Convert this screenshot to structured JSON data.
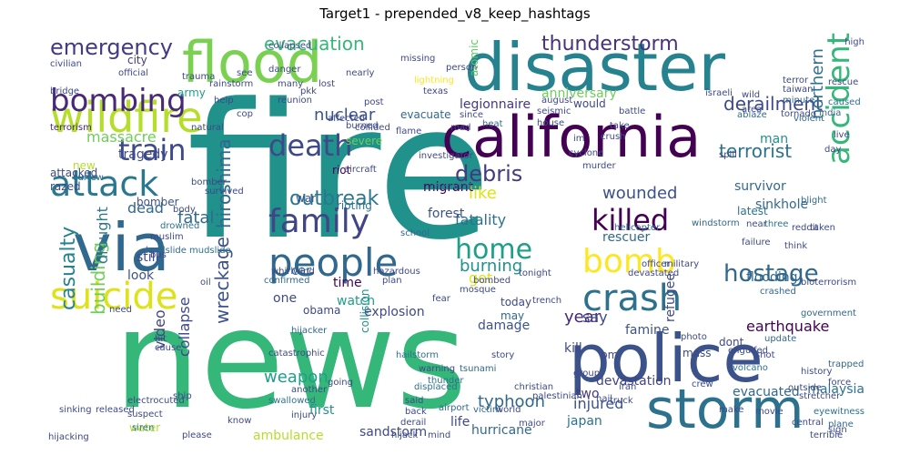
{
  "title": "Target1 - prepended_v8_keep_hashtags",
  "palette": [
    "#440154",
    "#482878",
    "#3e4989",
    "#31688e",
    "#26828e",
    "#1f9e89",
    "#35b779",
    "#6ece58",
    "#b5de2b",
    "#fde725"
  ],
  "words": [
    {
      "text": "fire",
      "color": "#21918c"
    },
    {
      "text": "news",
      "color": "#35b779"
    },
    {
      "text": "disaster",
      "color": "#26828e"
    },
    {
      "text": "flood",
      "color": "#7ad151"
    },
    {
      "text": "california",
      "color": "#440154"
    },
    {
      "text": "police",
      "color": "#3b528b"
    },
    {
      "text": "storm",
      "color": "#2c728e"
    },
    {
      "text": "via",
      "color": "#31688e"
    },
    {
      "text": "wildfire",
      "color": "#b5de2b"
    },
    {
      "text": "bombing",
      "color": "#482878"
    },
    {
      "text": "emergency",
      "color": "#443983"
    },
    {
      "text": "suicide",
      "color": "#dde318"
    },
    {
      "text": "people",
      "color": "#31688e"
    },
    {
      "text": "family",
      "color": "#414487"
    },
    {
      "text": "death",
      "color": "#3e4989"
    },
    {
      "text": "attack",
      "color": "#2a788e"
    },
    {
      "text": "train",
      "color": "#3e4989"
    },
    {
      "text": "crash",
      "color": "#2c728e"
    },
    {
      "text": "bomb",
      "color": "#fde725"
    },
    {
      "text": "killed",
      "color": "#440154"
    },
    {
      "text": "home",
      "color": "#1f9e89"
    },
    {
      "text": "accident",
      "color": "#35b779"
    },
    {
      "text": "hostage",
      "color": "#31688e"
    },
    {
      "text": "thunderstorm",
      "color": "#46327e"
    },
    {
      "text": "evacuation",
      "color": "#35b779"
    },
    {
      "text": "derailment",
      "color": "#3e4989"
    },
    {
      "text": "terrorist",
      "color": "#2c728e"
    },
    {
      "text": "nuclear",
      "color": "#3b528b"
    },
    {
      "text": "outbreak",
      "color": "#2a788e"
    },
    {
      "text": "hiroshima",
      "color": "#31688e"
    },
    {
      "text": "debris",
      "color": "#443983"
    },
    {
      "text": "earthquake",
      "color": "#440154"
    },
    {
      "text": "casualty",
      "color": "#26828e"
    },
    {
      "text": "building",
      "color": "#6ece58"
    },
    {
      "text": "wreckage",
      "color": "#3b528b"
    },
    {
      "text": "weapon",
      "color": "#1f9e89"
    },
    {
      "text": "typhoon",
      "color": "#31688e"
    },
    {
      "text": "collapse",
      "color": "#3e4989"
    },
    {
      "text": "video",
      "color": "#414487"
    },
    {
      "text": "fatality",
      "color": "#2c728e"
    },
    {
      "text": "burning",
      "color": "#21918c"
    },
    {
      "text": "wounded",
      "color": "#3b528b"
    },
    {
      "text": "sinkhole",
      "color": "#31688e"
    },
    {
      "text": "flooding",
      "color": "#31688e"
    },
    {
      "text": "year",
      "color": "#482878"
    },
    {
      "text": "injured",
      "color": "#3b528b"
    },
    {
      "text": "devastation",
      "color": "#414487"
    },
    {
      "text": "evacuated",
      "color": "#31688e"
    },
    {
      "text": "malaysia",
      "color": "#2c728e"
    },
    {
      "text": "hurricane",
      "color": "#31688e"
    },
    {
      "text": "sandstorm",
      "color": "#3e4989"
    },
    {
      "text": "first",
      "color": "#21918c"
    },
    {
      "text": "ambulance",
      "color": "#b5de2b"
    },
    {
      "text": "two",
      "color": "#443983"
    },
    {
      "text": "japan",
      "color": "#2c728e"
    },
    {
      "text": "like",
      "color": "#dde318"
    },
    {
      "text": "dead",
      "color": "#31688e"
    },
    {
      "text": "fatal",
      "color": "#31688e"
    },
    {
      "text": "explosion",
      "color": "#3e4989"
    },
    {
      "text": "rescuer",
      "color": "#31688e"
    },
    {
      "text": "watch",
      "color": "#1f9e89"
    },
    {
      "text": "car",
      "color": "#31688e"
    },
    {
      "text": "time",
      "color": "#440154"
    },
    {
      "text": "get",
      "color": "#dde318"
    },
    {
      "text": "refugee",
      "color": "#3e4989"
    },
    {
      "text": "famine",
      "color": "#3b528b"
    },
    {
      "text": "damage",
      "color": "#3b528b"
    },
    {
      "text": "kill",
      "color": "#3e4989"
    },
    {
      "text": "say",
      "color": "#3e4989"
    },
    {
      "text": "northern",
      "color": "#2c728e"
    },
    {
      "text": "massacre",
      "color": "#6ece58"
    },
    {
      "text": "migrant",
      "color": "#440154"
    },
    {
      "text": "tragedy",
      "color": "#3e4989"
    },
    {
      "text": "legionnaire",
      "color": "#443983"
    },
    {
      "text": "man",
      "color": "#21918c"
    },
    {
      "text": "forest",
      "color": "#3b528b"
    },
    {
      "text": "survivor",
      "color": "#31688e"
    },
    {
      "text": "drought",
      "color": "#2a788e"
    },
    {
      "text": "look",
      "color": "#3b528b"
    },
    {
      "text": "still",
      "color": "#3e4989"
    },
    {
      "text": "one",
      "color": "#3e4989"
    },
    {
      "text": "life",
      "color": "#3e4989"
    },
    {
      "text": "water",
      "color": "#b5de2b"
    },
    {
      "text": "today",
      "color": "#3e4989"
    },
    {
      "text": "may",
      "color": "#31688e"
    },
    {
      "text": "pm",
      "color": "#3e4989"
    },
    {
      "text": "evacuate",
      "color": "#31688e"
    },
    {
      "text": "attacked",
      "color": "#3e4989"
    },
    {
      "text": "razed",
      "color": "#3e4989"
    },
    {
      "text": "riot",
      "color": "#440154"
    },
    {
      "text": "rioting",
      "color": "#2c728e"
    },
    {
      "text": "war",
      "color": "#3b528b"
    },
    {
      "text": "terrorism",
      "color": "#482878"
    },
    {
      "text": "bomber",
      "color": "#3b528b"
    },
    {
      "text": "army",
      "color": "#1f9e89"
    },
    {
      "text": "city",
      "color": "#443983"
    },
    {
      "text": "latest",
      "color": "#2c728e"
    },
    {
      "text": "mass",
      "color": "#3e4989"
    },
    {
      "text": "dont",
      "color": "#3e4989"
    },
    {
      "text": "anniversary",
      "color": "#6ece58"
    },
    {
      "text": "atomic",
      "color": "#5ec962"
    },
    {
      "text": "severe",
      "color": "#6ece58"
    },
    {
      "text": "obama",
      "color": "#3e4989"
    },
    {
      "text": "new",
      "color": "#b5de2b"
    },
    {
      "text": "collision",
      "color": "#21918c"
    },
    {
      "text": "displaced",
      "color": "#2c728e"
    },
    {
      "text": "curfew",
      "color": "#31688e"
    },
    {
      "text": "confirmed",
      "color": "#31688e"
    },
    {
      "text": "drowned",
      "color": "#2c728e"
    },
    {
      "text": "mudslide",
      "color": "#2c728e"
    },
    {
      "text": "landslide",
      "color": "#31688e"
    },
    {
      "text": "volcano",
      "color": "#2c728e"
    },
    {
      "text": "shot",
      "color": "#3e4989"
    },
    {
      "text": "update",
      "color": "#31688e"
    },
    {
      "text": "failure",
      "color": "#3e4989"
    },
    {
      "text": "near",
      "color": "#3e4989"
    },
    {
      "text": "three",
      "color": "#2c728e"
    },
    {
      "text": "crashed",
      "color": "#31688e"
    },
    {
      "text": "plane",
      "color": "#31688e"
    },
    {
      "text": "caused",
      "color": "#2c728e"
    },
    {
      "text": "rescue",
      "color": "#3e4989"
    },
    {
      "text": "tornado",
      "color": "#3e4989"
    },
    {
      "text": "violent",
      "color": "#31688e"
    },
    {
      "text": "ablaze",
      "color": "#31688e"
    },
    {
      "text": "electrocuted",
      "color": "#3e4989"
    },
    {
      "text": "hijacking",
      "color": "#3e4989"
    },
    {
      "text": "siren",
      "color": "#2c728e"
    },
    {
      "text": "suspect",
      "color": "#3e4989"
    },
    {
      "text": "please",
      "color": "#3e4989"
    },
    {
      "text": "hijacker",
      "color": "#31688e"
    },
    {
      "text": "catastrophic",
      "color": "#3e4989"
    },
    {
      "text": "hailstorm",
      "color": "#2c728e"
    },
    {
      "text": "airport",
      "color": "#31688e"
    },
    {
      "text": "derail",
      "color": "#3e4989"
    },
    {
      "text": "swallowed",
      "color": "#2c728e"
    },
    {
      "text": "injury",
      "color": "#3e4989"
    },
    {
      "text": "warning",
      "color": "#3e4989"
    },
    {
      "text": "thunder",
      "color": "#2c728e"
    },
    {
      "text": "tsunami",
      "color": "#31688e"
    },
    {
      "text": "victim",
      "color": "#31688e"
    },
    {
      "text": "world",
      "color": "#3e4989"
    },
    {
      "text": "story",
      "color": "#3e4989"
    },
    {
      "text": "engulfed",
      "color": "#3e4989"
    },
    {
      "text": "trapped",
      "color": "#31688e"
    },
    {
      "text": "eyewitness",
      "color": "#2c728e"
    },
    {
      "text": "blight",
      "color": "#31688e"
    },
    {
      "text": "bioterrorism",
      "color": "#3e4989"
    },
    {
      "text": "government",
      "color": "#31688e"
    },
    {
      "text": "helicopter",
      "color": "#2c728e"
    },
    {
      "text": "windstorm",
      "color": "#31688e"
    },
    {
      "text": "military",
      "color": "#3e4989"
    },
    {
      "text": "investigator",
      "color": "#3e4989"
    },
    {
      "text": "school",
      "color": "#31688e"
    },
    {
      "text": "chemical",
      "color": "#2c728e"
    },
    {
      "text": "lightning",
      "color": "#fde725"
    },
    {
      "text": "missing",
      "color": "#3e4989"
    },
    {
      "text": "wild",
      "color": "#3e4989"
    },
    {
      "text": "area",
      "color": "#3e4989"
    },
    {
      "text": "minute",
      "color": "#31688e"
    },
    {
      "text": "india",
      "color": "#31688e"
    },
    {
      "text": "live",
      "color": "#3e4989"
    },
    {
      "text": "august",
      "color": "#3e4989"
    },
    {
      "text": "house",
      "color": "#3e4989"
    },
    {
      "text": "heat",
      "color": "#31688e"
    },
    {
      "text": "since",
      "color": "#3e4989"
    },
    {
      "text": "road",
      "color": "#3e4989"
    },
    {
      "text": "cyclone",
      "color": "#3e4989"
    },
    {
      "text": "murder",
      "color": "#3e4989"
    },
    {
      "text": "take",
      "color": "#3e4989"
    },
    {
      "text": "crush",
      "color": "#3e4989"
    },
    {
      "text": "reunion",
      "color": "#3e4989"
    },
    {
      "text": "rainstorm",
      "color": "#3e4989"
    },
    {
      "text": "nearly",
      "color": "#3e4989"
    },
    {
      "text": "collided",
      "color": "#3e4989"
    },
    {
      "text": "burned",
      "color": "#3e4989"
    },
    {
      "text": "natural",
      "color": "#3e4989"
    },
    {
      "text": "survived",
      "color": "#3e4989"
    },
    {
      "text": "muslim",
      "color": "#3e4989"
    },
    {
      "text": "bus",
      "color": "#3e4989"
    },
    {
      "text": "need",
      "color": "#3e4989"
    },
    {
      "text": "body",
      "color": "#3e4989"
    },
    {
      "text": "oil",
      "color": "#3e4989"
    },
    {
      "text": "crew",
      "color": "#3e4989"
    },
    {
      "text": "photo",
      "color": "#3e4989"
    },
    {
      "text": "hail",
      "color": "#3e4989"
    },
    {
      "text": "iran",
      "color": "#3e4989"
    },
    {
      "text": "make",
      "color": "#3e4989"
    },
    {
      "text": "movie",
      "color": "#3e4989"
    },
    {
      "text": "taken",
      "color": "#3e4989"
    },
    {
      "text": "danger",
      "color": "#3e4989"
    },
    {
      "text": "official",
      "color": "#3e4989"
    },
    {
      "text": "collapsed",
      "color": "#3e4989"
    },
    {
      "text": "trauma",
      "color": "#3e4989"
    },
    {
      "text": "bridge",
      "color": "#3e4989"
    },
    {
      "text": "civilian",
      "color": "#3e4989"
    },
    {
      "text": "help",
      "color": "#3e4989"
    },
    {
      "text": "pkk",
      "color": "#3e4989"
    },
    {
      "text": "lost",
      "color": "#3e4989"
    },
    {
      "text": "post",
      "color": "#3e4989"
    },
    {
      "text": "person",
      "color": "#3e4989"
    },
    {
      "text": "texas",
      "color": "#3e4989"
    },
    {
      "text": "high",
      "color": "#3e4989"
    },
    {
      "text": "taiwan",
      "color": "#3e4989"
    },
    {
      "text": "terror",
      "color": "#3e4989"
    },
    {
      "text": "israeli",
      "color": "#3e4989"
    },
    {
      "text": "battle",
      "color": "#3e4989"
    },
    {
      "text": "seismic",
      "color": "#3e4989"
    },
    {
      "text": "would",
      "color": "#3e4989"
    },
    {
      "text": "im",
      "color": "#3e4989"
    },
    {
      "text": "day",
      "color": "#3e4989"
    },
    {
      "text": "affected",
      "color": "#3e4989"
    },
    {
      "text": "flame",
      "color": "#3e4989"
    },
    {
      "text": "many",
      "color": "#3e4989"
    },
    {
      "text": "see",
      "color": "#3e4989"
    },
    {
      "text": "cop",
      "color": "#3e4989"
    },
    {
      "text": "spill",
      "color": "#3e4989"
    },
    {
      "text": "aircraft",
      "color": "#3e4989"
    },
    {
      "text": "bomber",
      "color": "#3e4989"
    },
    {
      "text": "whirlwind",
      "color": "#3e4989"
    },
    {
      "text": "hazardous",
      "color": "#3e4989"
    },
    {
      "text": "plan",
      "color": "#3e4989"
    },
    {
      "text": "fear",
      "color": "#3e4989"
    },
    {
      "text": "mosque",
      "color": "#3e4989"
    },
    {
      "text": "bombed",
      "color": "#3e4989"
    },
    {
      "text": "going",
      "color": "#3e4989"
    },
    {
      "text": "another",
      "color": "#3e4989"
    },
    {
      "text": "said",
      "color": "#3e4989"
    },
    {
      "text": "back",
      "color": "#3e4989"
    },
    {
      "text": "cause",
      "color": "#3e4989"
    },
    {
      "text": "hit",
      "color": "#3e4989"
    },
    {
      "text": "released",
      "color": "#3e4989"
    },
    {
      "text": "sinking",
      "color": "#3e4989"
    },
    {
      "text": "ship",
      "color": "#3e4989"
    },
    {
      "text": "truck",
      "color": "#3e4989"
    },
    {
      "text": "tonight",
      "color": "#3e4989"
    },
    {
      "text": "trench",
      "color": "#3e4989"
    },
    {
      "text": "group",
      "color": "#3e4989"
    },
    {
      "text": "officer",
      "color": "#3e4989"
    },
    {
      "text": "devastated",
      "color": "#3e4989"
    },
    {
      "text": "hijack",
      "color": "#3e4989"
    },
    {
      "text": "major",
      "color": "#3e4989"
    },
    {
      "text": "mind",
      "color": "#3e4989"
    },
    {
      "text": "know",
      "color": "#3e4989"
    },
    {
      "text": "outside",
      "color": "#3e4989"
    },
    {
      "text": "central",
      "color": "#3e4989"
    },
    {
      "text": "force",
      "color": "#3e4989"
    },
    {
      "text": "history",
      "color": "#3e4989"
    },
    {
      "text": "stretcher",
      "color": "#3e4989"
    },
    {
      "text": "christian",
      "color": "#3e4989"
    },
    {
      "text": "palestinian",
      "color": "#3e4989"
    },
    {
      "text": "reddit",
      "color": "#3e4989"
    },
    {
      "text": "think",
      "color": "#3e4989"
    },
    {
      "text": "sign",
      "color": "#3e4989"
    },
    {
      "text": "terrible",
      "color": "#3e4989"
    }
  ]
}
